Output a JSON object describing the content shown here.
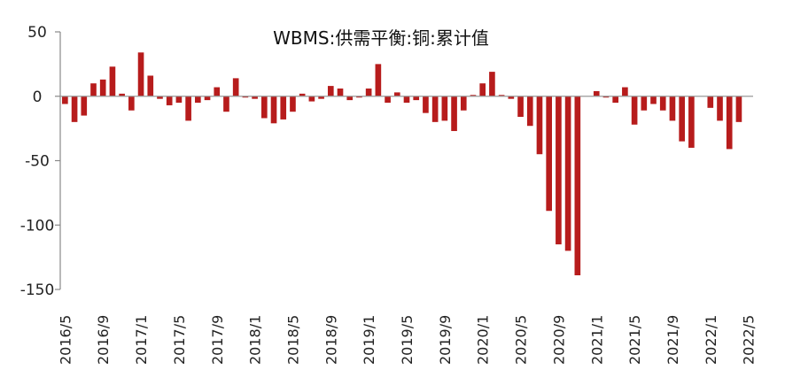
{
  "chart_data": {
    "type": "bar",
    "title": "WBMS:供需平衡:铜:累计值",
    "xlabel": "",
    "ylabel": "",
    "ylim": [
      -150,
      50
    ],
    "yticks": [
      "50",
      "0",
      "-50",
      "-100",
      "-150"
    ],
    "grid": false,
    "legend": "none",
    "bar_color": "#b71c1c",
    "x_tick_labels": [
      "2016/5",
      "2016/9",
      "2017/1",
      "2017/5",
      "2017/9",
      "2018/1",
      "2018/5",
      "2018/9",
      "2019/1",
      "2019/5",
      "2019/9",
      "2020/1",
      "2020/5",
      "2020/9",
      "2021/1",
      "2021/5",
      "2021/9",
      "2022/1",
      "2022/5"
    ],
    "categories": [
      "2016/5",
      "2016/6",
      "2016/7",
      "2016/8",
      "2016/9",
      "2016/10",
      "2016/11",
      "2016/12",
      "2017/1",
      "2017/2",
      "2017/3",
      "2017/4",
      "2017/5",
      "2017/6",
      "2017/7",
      "2017/8",
      "2017/9",
      "2017/10",
      "2017/11",
      "2017/12",
      "2018/1",
      "2018/2",
      "2018/3",
      "2018/4",
      "2018/5",
      "2018/6",
      "2018/7",
      "2018/8",
      "2018/9",
      "2018/10",
      "2018/11",
      "2018/12",
      "2019/1",
      "2019/2",
      "2019/3",
      "2019/4",
      "2019/5",
      "2019/6",
      "2019/7",
      "2019/8",
      "2019/9",
      "2019/10",
      "2019/11",
      "2019/12",
      "2020/1",
      "2020/2",
      "2020/3",
      "2020/4",
      "2020/5",
      "2020/6",
      "2020/7",
      "2020/8",
      "2020/9",
      "2020/10",
      "2020/11",
      "2020/12",
      "2021/1",
      "2021/2",
      "2021/3",
      "2021/4",
      "2021/5",
      "2021/6",
      "2021/7",
      "2021/8",
      "2021/9",
      "2021/10",
      "2021/11",
      "2021/12",
      "2022/1",
      "2022/2",
      "2022/3",
      "2022/4",
      "2022/5"
    ],
    "values": [
      -6,
      -20,
      -15,
      10,
      13,
      23,
      2,
      -11,
      34,
      16,
      -2,
      -7,
      -5,
      -19,
      -5,
      -3,
      7,
      -12,
      14,
      -1,
      -2,
      -17,
      -21,
      -18,
      -12,
      2,
      -4,
      -2,
      8,
      6,
      -3,
      -1,
      6,
      25,
      -5,
      3,
      -5,
      -3,
      -13,
      -20,
      -19,
      -27,
      -11,
      1,
      10,
      19,
      1,
      -2,
      -16,
      -23,
      -45,
      -89,
      -115,
      -120,
      -139,
      0,
      4,
      -1,
      -5,
      7,
      -22,
      -11,
      -6,
      -11,
      -19,
      -35,
      -40,
      0,
      -9,
      -19,
      -41,
      -20,
      0
    ]
  }
}
